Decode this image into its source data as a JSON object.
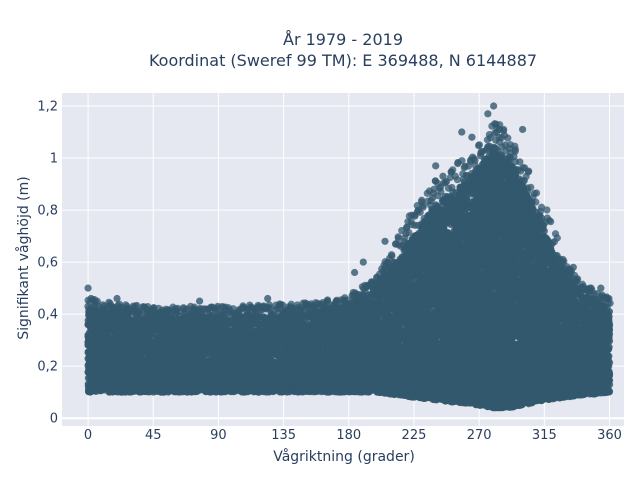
{
  "chart_data": {
    "type": "scatter",
    "title_line1": "År 1979 - 2019",
    "title_line2": "Koordinat (Sweref 99 TM): E 369488, N 6144887",
    "xlabel": "Vågriktning (grader)",
    "ylabel": "Signifikant våghöjd (m)",
    "xlim": [
      -18,
      370
    ],
    "ylim": [
      -0.03,
      1.25
    ],
    "x_ticks": [
      0,
      45,
      90,
      135,
      180,
      225,
      270,
      315,
      360
    ],
    "x_tick_labels": [
      "0",
      "45",
      "90",
      "135",
      "180",
      "225",
      "270",
      "315",
      "360"
    ],
    "y_ticks": [
      0,
      0.2,
      0.4,
      0.6,
      0.8,
      1.0,
      1.2
    ],
    "y_tick_labels": [
      "0",
      "0,2",
      "0,4",
      "0,6",
      "0,8",
      "1",
      "1,2"
    ],
    "grid": true,
    "marker_color": "#33586e",
    "plot_bg": "#e5e8f1",
    "envelope": {
      "direction_deg": [
        0,
        20,
        45,
        90,
        135,
        160,
        180,
        200,
        225,
        240,
        255,
        270,
        280,
        290,
        300,
        315,
        330,
        345,
        360
      ],
      "lower_m": [
        0.1,
        0.1,
        0.1,
        0.1,
        0.1,
        0.1,
        0.1,
        0.1,
        0.08,
        0.07,
        0.06,
        0.05,
        0.04,
        0.04,
        0.05,
        0.07,
        0.08,
        0.09,
        0.1
      ],
      "upper_m": [
        0.42,
        0.4,
        0.39,
        0.39,
        0.4,
        0.41,
        0.43,
        0.52,
        0.7,
        0.82,
        0.88,
        0.96,
        1.05,
        1.0,
        0.9,
        0.72,
        0.55,
        0.47,
        0.42
      ]
    },
    "outliers": [
      {
        "x": 0,
        "y": 0.5
      },
      {
        "x": 2,
        "y": 0.46
      },
      {
        "x": 20,
        "y": 0.46
      },
      {
        "x": 77,
        "y": 0.45
      },
      {
        "x": 124,
        "y": 0.46
      },
      {
        "x": 184,
        "y": 0.56
      },
      {
        "x": 190,
        "y": 0.6
      },
      {
        "x": 205,
        "y": 0.68
      },
      {
        "x": 228,
        "y": 0.8
      },
      {
        "x": 240,
        "y": 0.97
      },
      {
        "x": 245,
        "y": 0.93
      },
      {
        "x": 258,
        "y": 1.1
      },
      {
        "x": 265,
        "y": 1.08
      },
      {
        "x": 276,
        "y": 1.17
      },
      {
        "x": 280,
        "y": 1.2
      },
      {
        "x": 284,
        "y": 1.11
      },
      {
        "x": 288,
        "y": 1.05
      },
      {
        "x": 300,
        "y": 1.11
      },
      {
        "x": 313,
        "y": 0.77
      },
      {
        "x": 325,
        "y": 0.61
      },
      {
        "x": 335,
        "y": 0.58
      },
      {
        "x": 354,
        "y": 0.5
      }
    ]
  }
}
